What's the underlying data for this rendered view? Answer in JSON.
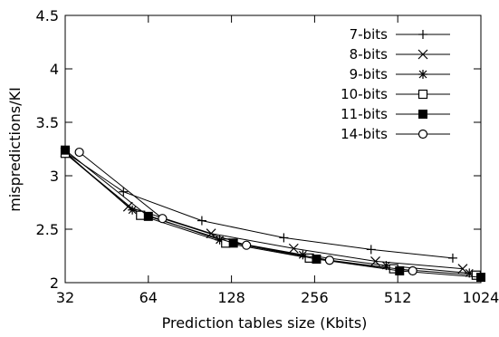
{
  "chart_data": {
    "type": "line",
    "title": "",
    "xlabel": "Prediction tables size (Kbits)",
    "ylabel": "mispredictions/KI",
    "x_scale": "log2",
    "xlim": [
      32,
      1024
    ],
    "ylim": [
      2,
      4.5
    ],
    "x_ticks": [
      32,
      64,
      128,
      256,
      512,
      1024
    ],
    "x_tick_labels": [
      "32",
      "64",
      "128",
      "256",
      "512",
      "1024"
    ],
    "y_ticks": [
      2,
      2.5,
      3,
      3.5,
      4,
      4.5
    ],
    "y_tick_labels": [
      "2",
      "2.5",
      "3",
      "3.5",
      "4",
      "4.5"
    ],
    "grid": false,
    "legend_position": "top-right",
    "series": [
      {
        "name": "7-bits",
        "marker": "plus",
        "x": [
          32,
          52,
          100,
          198,
          410,
          810
        ],
        "y": [
          3.22,
          2.85,
          2.58,
          2.42,
          2.31,
          2.23
        ]
      },
      {
        "name": "8-bits",
        "marker": "cross",
        "x": [
          32,
          54,
          108,
          215,
          425,
          880
        ],
        "y": [
          3.22,
          2.71,
          2.46,
          2.32,
          2.2,
          2.13
        ]
      },
      {
        "name": "9-bits",
        "marker": "asterisk",
        "x": [
          32,
          56,
          116,
          232,
          465,
          930
        ],
        "y": [
          3.21,
          2.68,
          2.4,
          2.26,
          2.16,
          2.09
        ]
      },
      {
        "name": "10-bits",
        "marker": "square-open",
        "x": [
          32,
          60,
          122,
          245,
          495,
          985
        ],
        "y": [
          3.21,
          2.63,
          2.37,
          2.23,
          2.13,
          2.07
        ]
      },
      {
        "name": "11-bits",
        "marker": "square-filled",
        "x": [
          32,
          64,
          130,
          260,
          520,
          1024
        ],
        "y": [
          3.24,
          2.62,
          2.37,
          2.22,
          2.11,
          2.05
        ]
      },
      {
        "name": "14-bits",
        "marker": "circle-open",
        "x": [
          36,
          72,
          145,
          290,
          580
        ],
        "y": [
          3.22,
          2.6,
          2.35,
          2.21,
          2.11
        ]
      }
    ]
  }
}
